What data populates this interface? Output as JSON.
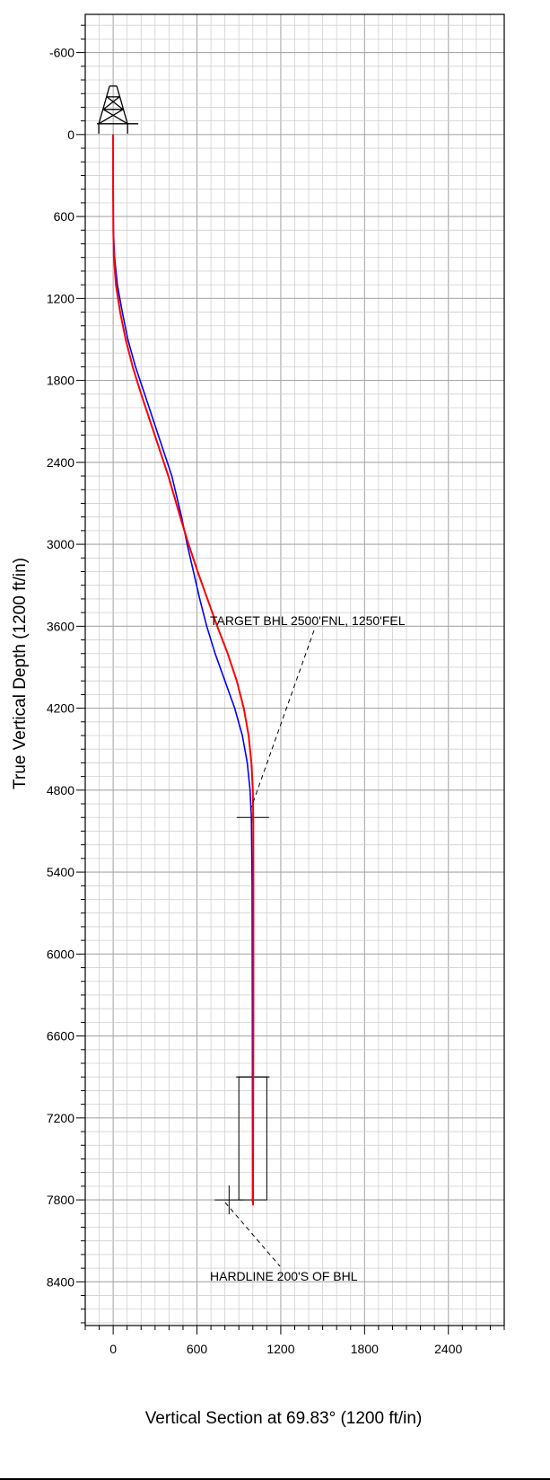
{
  "chart_data": {
    "type": "line",
    "xlabel": "Vertical Section at 69.83° (1200 ft/in)",
    "ylabel": "True Vertical Depth (1200 ft/in)",
    "xlim": [
      -200,
      2800
    ],
    "ylim": [
      -880,
      8720
    ],
    "y_inverted": true,
    "grid": true,
    "x_ticks": [
      0,
      600,
      1200,
      1800,
      2400
    ],
    "x_tick_labels": [
      "0",
      "600",
      "1200",
      "1800",
      "2400"
    ],
    "y_ticks": [
      -600,
      0,
      600,
      1200,
      1800,
      2400,
      3000,
      3600,
      4200,
      4800,
      5400,
      6000,
      6600,
      7200,
      7800,
      8400
    ],
    "y_tick_labels": [
      "-600",
      "0",
      "600",
      "1200",
      "1800",
      "2400",
      "3000",
      "3600",
      "4200",
      "4800",
      "5400",
      "6000",
      "6600",
      "7200",
      "7800",
      "8400"
    ],
    "series": [
      {
        "color": "#0000ff",
        "points": [
          [
            0,
            0
          ],
          [
            0,
            400
          ],
          [
            2,
            700
          ],
          [
            10,
            900
          ],
          [
            30,
            1100
          ],
          [
            65,
            1300
          ],
          [
            105,
            1500
          ],
          [
            160,
            1700
          ],
          [
            225,
            1900
          ],
          [
            290,
            2100
          ],
          [
            355,
            2300
          ],
          [
            420,
            2500
          ],
          [
            490,
            2800
          ],
          [
            530,
            3000
          ],
          [
            575,
            3200
          ],
          [
            620,
            3400
          ],
          [
            670,
            3600
          ],
          [
            730,
            3800
          ],
          [
            800,
            4000
          ],
          [
            870,
            4200
          ],
          [
            925,
            4400
          ],
          [
            960,
            4600
          ],
          [
            980,
            4800
          ],
          [
            990,
            5000
          ],
          [
            995,
            5500
          ],
          [
            997,
            6500
          ],
          [
            998,
            7500
          ],
          [
            998,
            7820
          ]
        ]
      },
      {
        "color": "#ff0000",
        "points": [
          [
            0,
            0
          ],
          [
            0,
            400
          ],
          [
            1,
            700
          ],
          [
            5,
            900
          ],
          [
            20,
            1100
          ],
          [
            50,
            1300
          ],
          [
            90,
            1500
          ],
          [
            140,
            1700
          ],
          [
            200,
            1900
          ],
          [
            265,
            2100
          ],
          [
            330,
            2300
          ],
          [
            395,
            2500
          ],
          [
            480,
            2800
          ],
          [
            540,
            3000
          ],
          [
            605,
            3200
          ],
          [
            675,
            3400
          ],
          [
            745,
            3600
          ],
          [
            820,
            3800
          ],
          [
            885,
            4000
          ],
          [
            935,
            4200
          ],
          [
            970,
            4400
          ],
          [
            990,
            4600
          ],
          [
            1000,
            4800
          ],
          [
            1003,
            5000
          ],
          [
            1004,
            5500
          ],
          [
            1004,
            6500
          ],
          [
            1002,
            7500
          ],
          [
            1001,
            7840
          ]
        ]
      }
    ],
    "annotations": [
      {
        "text": "TARGET BHL 2500'FNL, 1250'FEL"
      },
      {
        "text": "HARDLINE 200'S OF BHL"
      }
    ]
  }
}
